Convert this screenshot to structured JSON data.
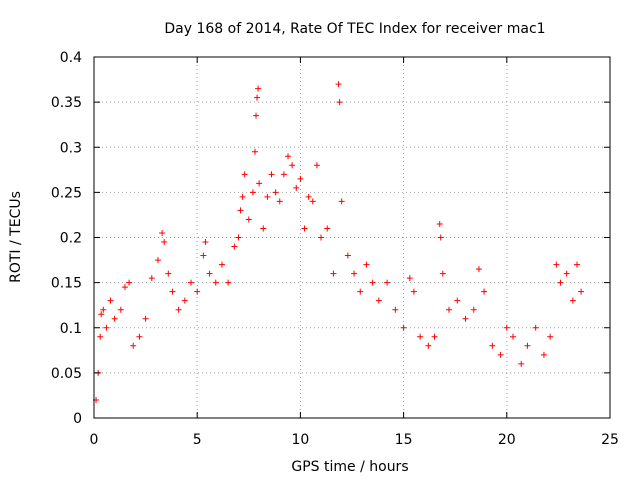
{
  "chart_data": {
    "type": "scatter",
    "title": "Day 168 of 2014, Rate Of TEC Index for receiver mac1",
    "xlabel": "GPS time / hours",
    "ylabel": "ROTI / TECUs",
    "xlim": [
      0,
      25
    ],
    "ylim": [
      0,
      0.4
    ],
    "x_ticks": [
      0,
      5,
      10,
      15,
      20,
      25
    ],
    "y_ticks": [
      0,
      0.05,
      0.1,
      0.15,
      0.2,
      0.25,
      0.3,
      0.35,
      0.4
    ],
    "x_tick_labels": [
      "0",
      "5",
      "10",
      "15",
      "20",
      "25"
    ],
    "y_tick_labels": [
      "0",
      "0.05",
      "0.1",
      "0.15",
      "0.2",
      "0.25",
      "0.3",
      "0.35",
      "0.4"
    ],
    "grid": true,
    "marker": "+",
    "color": "#ff0000",
    "series": [
      {
        "name": "ROTI",
        "points": [
          [
            0.1,
            0.02
          ],
          [
            0.2,
            0.05
          ],
          [
            0.3,
            0.09
          ],
          [
            0.35,
            0.115
          ],
          [
            0.45,
            0.12
          ],
          [
            0.6,
            0.1
          ],
          [
            0.8,
            0.13
          ],
          [
            1.0,
            0.11
          ],
          [
            1.3,
            0.12
          ],
          [
            1.5,
            0.145
          ],
          [
            1.7,
            0.15
          ],
          [
            1.9,
            0.08
          ],
          [
            2.2,
            0.09
          ],
          [
            2.5,
            0.11
          ],
          [
            2.8,
            0.155
          ],
          [
            3.1,
            0.175
          ],
          [
            3.3,
            0.205
          ],
          [
            3.4,
            0.195
          ],
          [
            3.6,
            0.16
          ],
          [
            3.8,
            0.14
          ],
          [
            4.1,
            0.12
          ],
          [
            4.4,
            0.13
          ],
          [
            4.7,
            0.15
          ],
          [
            5.0,
            0.14
          ],
          [
            5.3,
            0.18
          ],
          [
            5.4,
            0.195
          ],
          [
            5.6,
            0.16
          ],
          [
            5.9,
            0.15
          ],
          [
            6.2,
            0.17
          ],
          [
            6.5,
            0.15
          ],
          [
            6.8,
            0.19
          ],
          [
            7.0,
            0.2
          ],
          [
            7.1,
            0.23
          ],
          [
            7.2,
            0.245
          ],
          [
            7.3,
            0.27
          ],
          [
            7.5,
            0.22
          ],
          [
            7.7,
            0.25
          ],
          [
            7.8,
            0.295
          ],
          [
            7.85,
            0.335
          ],
          [
            7.9,
            0.355
          ],
          [
            7.95,
            0.365
          ],
          [
            8.0,
            0.26
          ],
          [
            8.2,
            0.21
          ],
          [
            8.4,
            0.245
          ],
          [
            8.6,
            0.27
          ],
          [
            8.8,
            0.25
          ],
          [
            9.0,
            0.24
          ],
          [
            9.2,
            0.27
          ],
          [
            9.4,
            0.29
          ],
          [
            9.6,
            0.28
          ],
          [
            9.8,
            0.255
          ],
          [
            10.0,
            0.265
          ],
          [
            10.2,
            0.21
          ],
          [
            10.4,
            0.245
          ],
          [
            10.6,
            0.24
          ],
          [
            10.8,
            0.28
          ],
          [
            11.0,
            0.2
          ],
          [
            11.3,
            0.21
          ],
          [
            11.6,
            0.16
          ],
          [
            11.85,
            0.37
          ],
          [
            11.9,
            0.35
          ],
          [
            12.0,
            0.24
          ],
          [
            12.3,
            0.18
          ],
          [
            12.6,
            0.16
          ],
          [
            12.9,
            0.14
          ],
          [
            13.2,
            0.17
          ],
          [
            13.5,
            0.15
          ],
          [
            13.8,
            0.13
          ],
          [
            14.2,
            0.15
          ],
          [
            14.6,
            0.12
          ],
          [
            15.0,
            0.1
          ],
          [
            15.3,
            0.155
          ],
          [
            15.5,
            0.14
          ],
          [
            15.8,
            0.09
          ],
          [
            16.2,
            0.08
          ],
          [
            16.5,
            0.09
          ],
          [
            16.75,
            0.215
          ],
          [
            16.8,
            0.2
          ],
          [
            16.9,
            0.16
          ],
          [
            17.2,
            0.12
          ],
          [
            17.6,
            0.13
          ],
          [
            18.0,
            0.11
          ],
          [
            18.4,
            0.12
          ],
          [
            18.65,
            0.165
          ],
          [
            18.9,
            0.14
          ],
          [
            19.3,
            0.08
          ],
          [
            19.7,
            0.07
          ],
          [
            20.0,
            0.1
          ],
          [
            20.3,
            0.09
          ],
          [
            20.7,
            0.06
          ],
          [
            21.0,
            0.08
          ],
          [
            21.4,
            0.1
          ],
          [
            21.8,
            0.07
          ],
          [
            22.1,
            0.09
          ],
          [
            22.4,
            0.17
          ],
          [
            22.6,
            0.15
          ],
          [
            22.9,
            0.16
          ],
          [
            23.2,
            0.13
          ],
          [
            23.4,
            0.17
          ],
          [
            23.6,
            0.14
          ]
        ]
      }
    ]
  }
}
